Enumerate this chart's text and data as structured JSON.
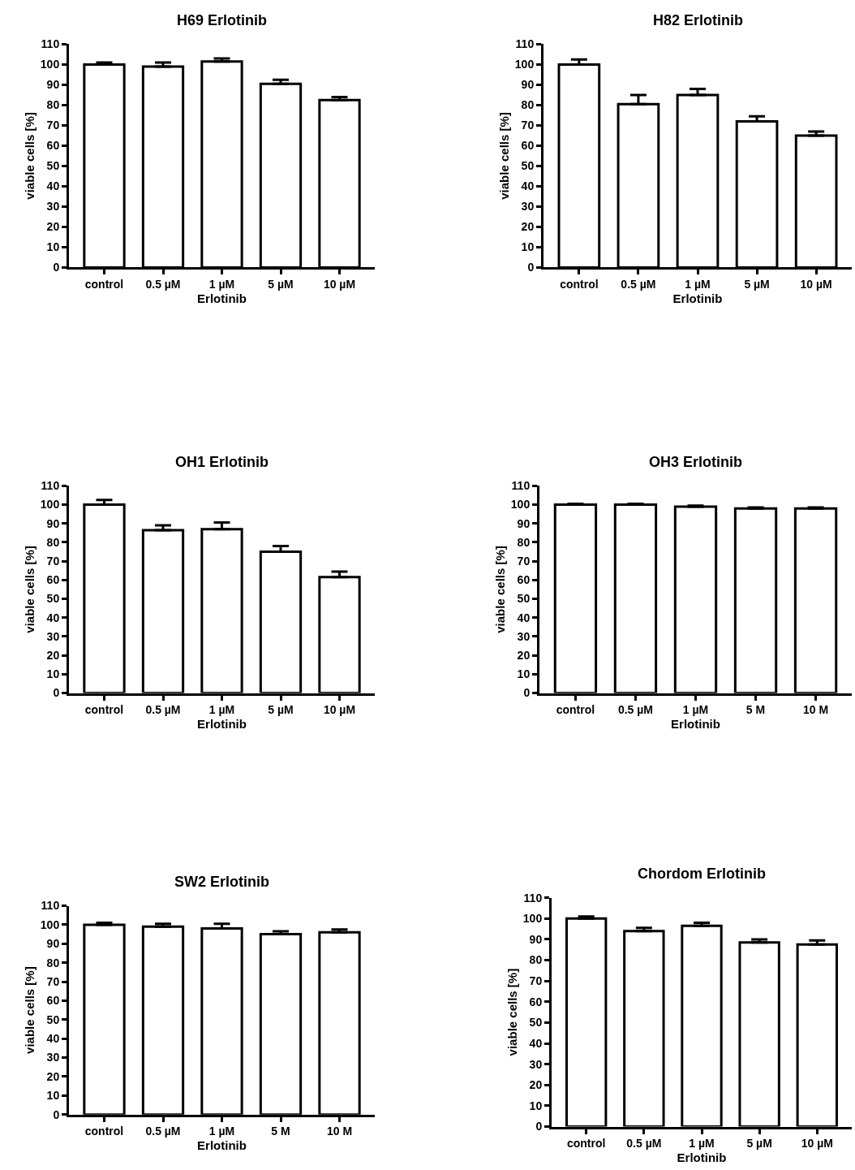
{
  "chart_data": [
    {
      "type": "bar",
      "title": "H69 Erlotinib",
      "xlabel": "Erlotinib",
      "ylabel": "viable cells [%]",
      "categories": [
        "control",
        "0.5 µM",
        "1 µM",
        "5 µM",
        "10 µM"
      ],
      "values": [
        100,
        99,
        101.5,
        90.5,
        82.5
      ],
      "errors": [
        [
          100,
          101
        ],
        [
          99,
          101
        ],
        [
          101.5,
          103
        ],
        [
          90.5,
          92.5
        ],
        [
          82.5,
          84
        ]
      ],
      "color": "#ffffff",
      "ylim": [
        0,
        110
      ],
      "yticks": [
        0,
        10,
        20,
        30,
        40,
        50,
        60,
        70,
        80,
        90,
        100,
        110
      ],
      "grid": false
    },
    {
      "type": "bar",
      "title": "H82 Erlotinib",
      "xlabel": "Erlotinib",
      "ylabel": "viable cells [%]",
      "categories": [
        "control",
        "0.5 µM",
        "1 µM",
        "5 µM",
        "10 µM"
      ],
      "values": [
        100,
        80.5,
        85,
        72,
        65
      ],
      "errors": [
        [
          100,
          102.5
        ],
        [
          80.5,
          85
        ],
        [
          85,
          88
        ],
        [
          72,
          74.5
        ],
        [
          65,
          67
        ]
      ],
      "color": "#ffffff",
      "ylim": [
        0,
        110
      ],
      "yticks": [
        0,
        10,
        20,
        30,
        40,
        50,
        60,
        70,
        80,
        90,
        100,
        110
      ],
      "grid": false
    },
    {
      "type": "bar",
      "title": "OH1 Erlotinib",
      "xlabel": "Erlotinib",
      "ylabel": "viable cells [%]",
      "categories": [
        "control",
        "0.5 µM",
        "1 µM",
        "5 µM",
        "10 µM"
      ],
      "values": [
        100,
        86.5,
        87,
        75,
        61.5
      ],
      "errors": [
        [
          100,
          102.5
        ],
        [
          86.5,
          89
        ],
        [
          87,
          90.5
        ],
        [
          75,
          78
        ],
        [
          61.5,
          64.5
        ]
      ],
      "color": "#ffffff",
      "ylim": [
        0,
        110
      ],
      "yticks": [
        0,
        10,
        20,
        30,
        40,
        50,
        60,
        70,
        80,
        90,
        100,
        110
      ],
      "grid": false
    },
    {
      "type": "bar",
      "title": "OH3 Erlotinib",
      "xlabel": "Erlotinib",
      "ylabel": "viable cells [%]",
      "categories": [
        "control",
        "0.5 µM",
        "1 µM",
        "5 M",
        "10 M"
      ],
      "values": [
        100,
        100,
        99,
        98,
        98
      ],
      "errors": [
        [
          100,
          100.5
        ],
        [
          100,
          100.5
        ],
        [
          99,
          99.5
        ],
        [
          98,
          98.5
        ],
        [
          98,
          98.5
        ]
      ],
      "color": "#ffffff",
      "ylim": [
        0,
        110
      ],
      "yticks": [
        0,
        10,
        20,
        30,
        40,
        50,
        60,
        70,
        80,
        90,
        100,
        110
      ],
      "grid": false
    },
    {
      "type": "bar",
      "title": "SW2 Erlotinib",
      "xlabel": "Erlotinib",
      "ylabel": "viable cells [%]",
      "categories": [
        "control",
        "0.5 µM",
        "1 µM",
        "5 M",
        "10 M"
      ],
      "values": [
        100,
        99,
        98,
        95,
        96
      ],
      "errors": [
        [
          100,
          101
        ],
        [
          99,
          100.5
        ],
        [
          98,
          100.5
        ],
        [
          95,
          96.5
        ],
        [
          96,
          97.5
        ]
      ],
      "color": "#ffffff",
      "ylim": [
        0,
        110
      ],
      "yticks": [
        0,
        10,
        20,
        30,
        40,
        50,
        60,
        70,
        80,
        90,
        100,
        110
      ],
      "grid": false
    },
    {
      "type": "bar",
      "title": "Chordom Erlotinib",
      "xlabel": "Erlotinib",
      "ylabel": "viable cells [%]",
      "categories": [
        "control",
        "0.5 µM",
        "1 µM",
        "5 µM",
        "10 µM"
      ],
      "values": [
        100,
        94,
        96.5,
        88.5,
        87.5
      ],
      "errors": [
        [
          100,
          101
        ],
        [
          94,
          95.5
        ],
        [
          96.5,
          98
        ],
        [
          88.5,
          90
        ],
        [
          87.5,
          89.5
        ]
      ],
      "color": "#ffffff",
      "ylim": [
        0,
        110
      ],
      "yticks": [
        0,
        10,
        20,
        30,
        40,
        50,
        60,
        70,
        80,
        90,
        100,
        110
      ],
      "grid": false
    }
  ]
}
